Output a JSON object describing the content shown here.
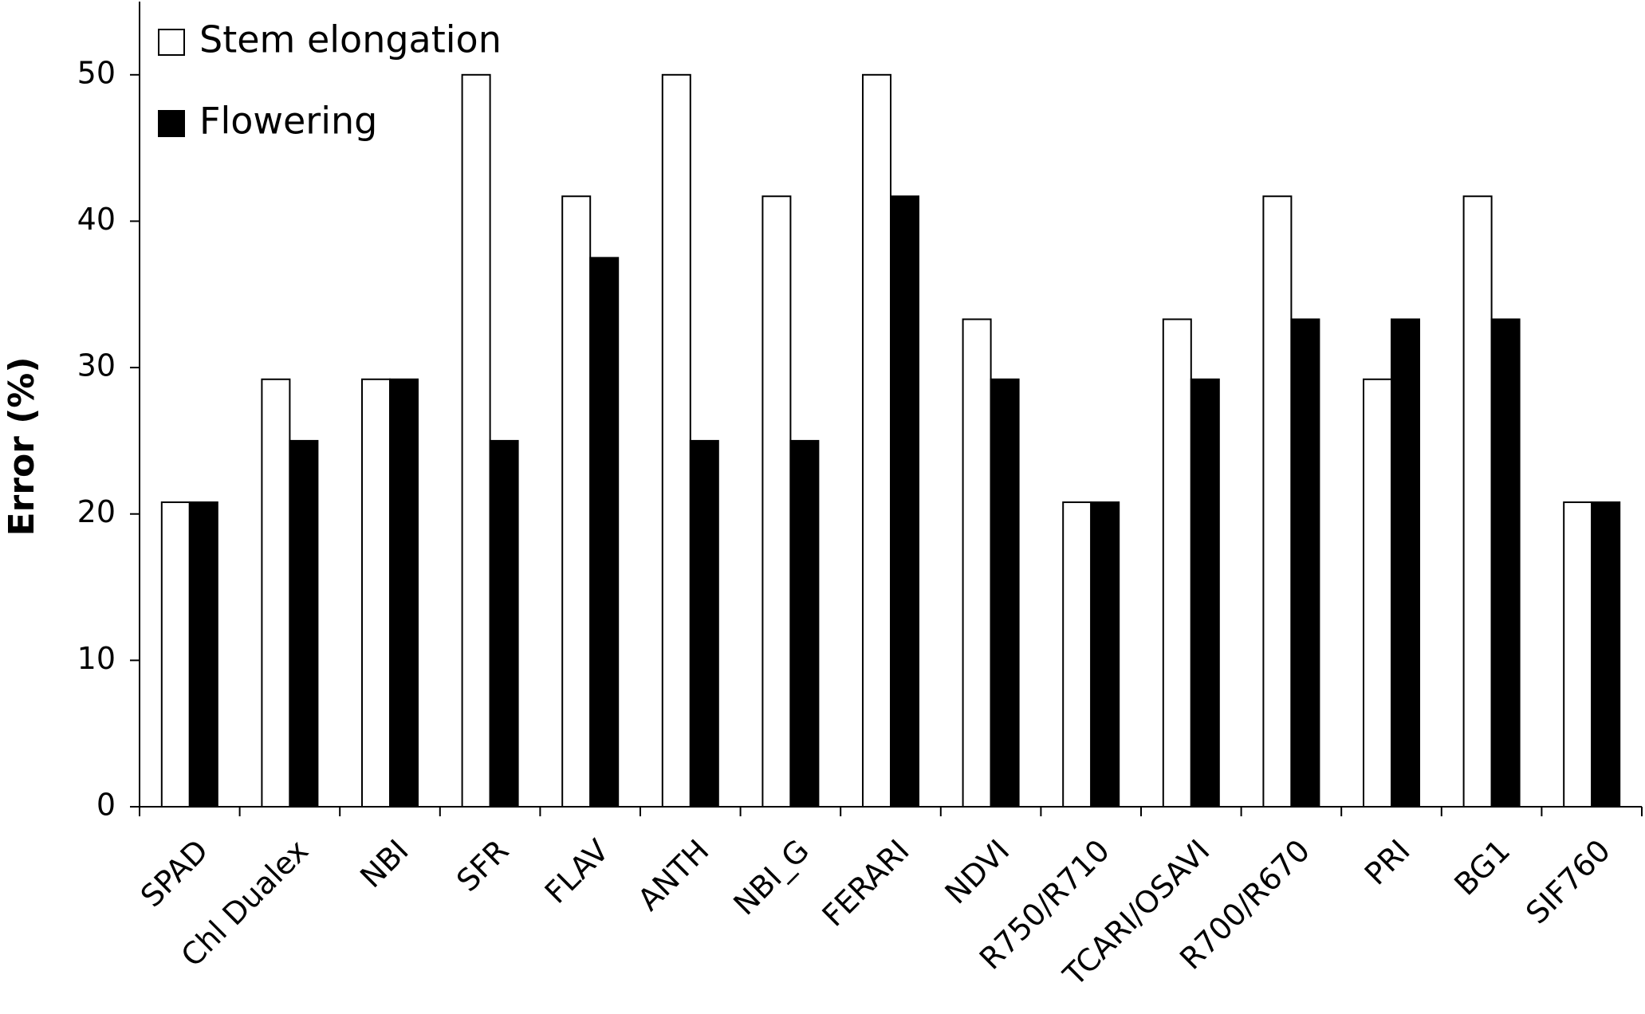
{
  "chart_data": {
    "type": "bar",
    "y_label": "Error (%)",
    "categories": [
      "SPAD",
      "Chl Dualex",
      "NBI",
      "SFR",
      "FLAV",
      "ANTH",
      "NBI_G",
      "FERARI",
      "NDVI",
      "R750/R710",
      "TCARI/OSAVI",
      "R700/R670",
      "PRI",
      "BG1",
      "SIF760"
    ],
    "series": [
      {
        "name": "Stem elongation",
        "color": "#ffffff",
        "values": [
          20.8,
          29.2,
          29.2,
          50,
          41.7,
          50,
          41.7,
          50,
          33.3,
          20.8,
          33.3,
          41.7,
          29.2,
          41.7,
          20.8
        ]
      },
      {
        "name": "Flowering",
        "color": "#000000",
        "values": [
          20.8,
          25,
          29.2,
          25,
          37.5,
          25,
          25,
          41.7,
          29.2,
          20.8,
          29.2,
          33.3,
          33.3,
          33.3,
          20.8
        ]
      }
    ],
    "ylim": [
      0,
      55
    ],
    "yticks": [
      0,
      10,
      20,
      30,
      40,
      50
    ],
    "grid": false,
    "legend": "top-left"
  }
}
